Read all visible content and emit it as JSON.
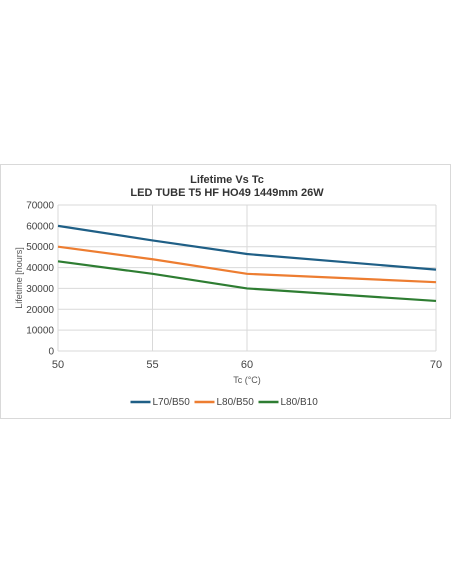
{
  "chart_data": {
    "type": "line",
    "title": "Lifetime Vs Tc",
    "subtitle": "LED TUBE T5 HF HO49 1449mm 26W",
    "xlabel": "Tc (°C)",
    "ylabel": "Lifetime [hours]",
    "x": [
      50,
      55,
      60,
      70
    ],
    "x_ticks": [
      "50",
      "55",
      "60",
      "70"
    ],
    "y_ticks": [
      "0",
      "10000",
      "20000",
      "30000",
      "40000",
      "50000",
      "60000",
      "70000"
    ],
    "ylim": [
      0,
      70000
    ],
    "grid": true,
    "legend_position": "bottom",
    "series": [
      {
        "name": "L70/B50",
        "color": "#1f5f86",
        "values": [
          60000,
          53000,
          46500,
          39000
        ]
      },
      {
        "name": "L80/B50",
        "color": "#ed7d31",
        "values": [
          50000,
          44000,
          37000,
          33000
        ]
      },
      {
        "name": "L80/B10",
        "color": "#2e7d32",
        "values": [
          43000,
          37000,
          30000,
          24000
        ]
      }
    ]
  }
}
